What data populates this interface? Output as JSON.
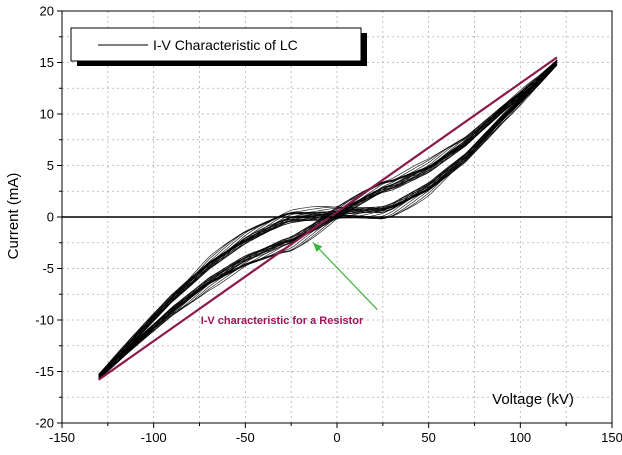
{
  "chart_data": {
    "type": "line",
    "xlabel": "Voltage (kV)",
    "ylabel": "Current (mA)",
    "xlim": [
      -150,
      150
    ],
    "ylim": [
      -20,
      20
    ],
    "x_ticks": [
      -150,
      -100,
      -50,
      0,
      50,
      100,
      150
    ],
    "y_ticks": [
      -20,
      -15,
      -10,
      -5,
      0,
      5,
      10,
      15,
      20
    ],
    "grid": true,
    "legend_position": "top-left",
    "legend": [
      {
        "name": "I-V Characteristic of LC",
        "color": "#555555"
      }
    ],
    "series": [
      {
        "name": "I-V Characteristic of LC",
        "color": "#000000",
        "x": [
          -130,
          -110,
          -90,
          -70,
          -50,
          -30,
          -10,
          10,
          30,
          50,
          70,
          90,
          110,
          120
        ],
        "y": [
          -15.5,
          -12.0,
          -8.5,
          -5.5,
          -3.2,
          -1.5,
          -0.3,
          0.9,
          2.0,
          3.8,
          6.5,
          10.0,
          13.2,
          15.0
        ]
      },
      {
        "color": "#8b1a4a",
        "x": [
          -130,
          120
        ],
        "y": [
          -15.8,
          15.5
        ]
      }
    ],
    "annotations": [
      {
        "text": "I-V characteristic for a Resistor",
        "color": "#a0145a",
        "x": -30,
        "y": -10,
        "arrow_from": [
          22,
          -9
        ],
        "arrow_to": [
          -13,
          -2.5
        ],
        "arrow_color": "#3cb43c"
      }
    ],
    "colors": {
      "lc_curve": "#000000",
      "resistor_line": "#8b1a4a",
      "annotation_arrow": "#3cb43c",
      "annotation_text": "#a0145a",
      "grid": "#b0b0b0"
    }
  }
}
